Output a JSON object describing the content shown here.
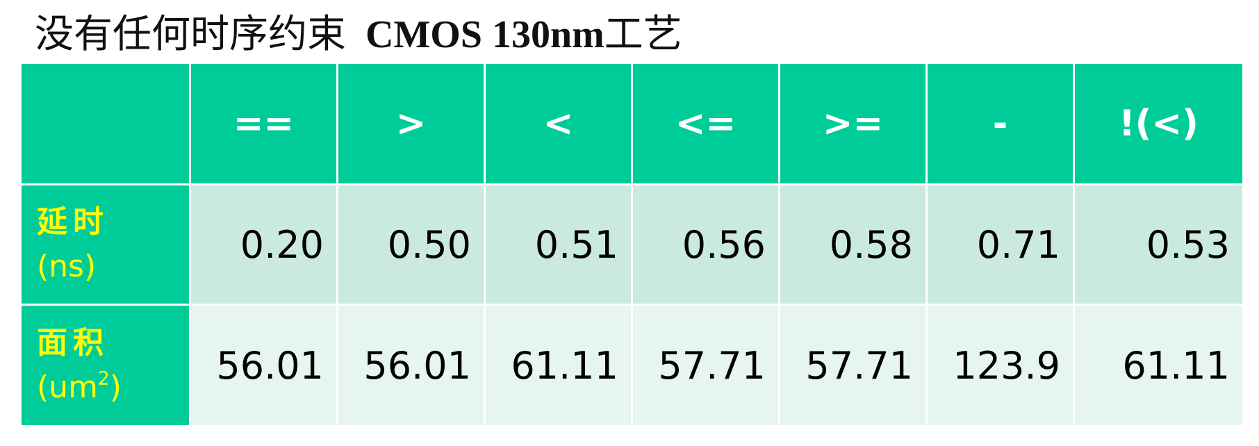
{
  "title": {
    "cn": "没有任何时序约束",
    "en": "CMOS 130nm",
    "cn_suffix": "工艺"
  },
  "table": {
    "headers": [
      "",
      "==",
      ">",
      "<",
      "<=",
      ">=",
      "-",
      "!(<)"
    ],
    "rows": [
      {
        "label_cn": "延时",
        "label_unit": "(ns)",
        "values": [
          "0.20",
          "0.50",
          "0.51",
          "0.56",
          "0.58",
          "0.71",
          "0.53"
        ]
      },
      {
        "label_cn": "面积",
        "label_unit_prefix": "(um",
        "label_unit_sup": "2",
        "label_unit_suffix": ")",
        "values": [
          "56.01",
          "56.01",
          "61.11",
          "57.71",
          "57.71",
          "123.9",
          "61.11"
        ]
      }
    ]
  },
  "colors": {
    "header_bg": "#00cc99",
    "row1_bg": "#cbeadf",
    "row2_bg": "#e6f5ef",
    "row_label_text": "#ffff00",
    "header_text": "#ffffff"
  }
}
